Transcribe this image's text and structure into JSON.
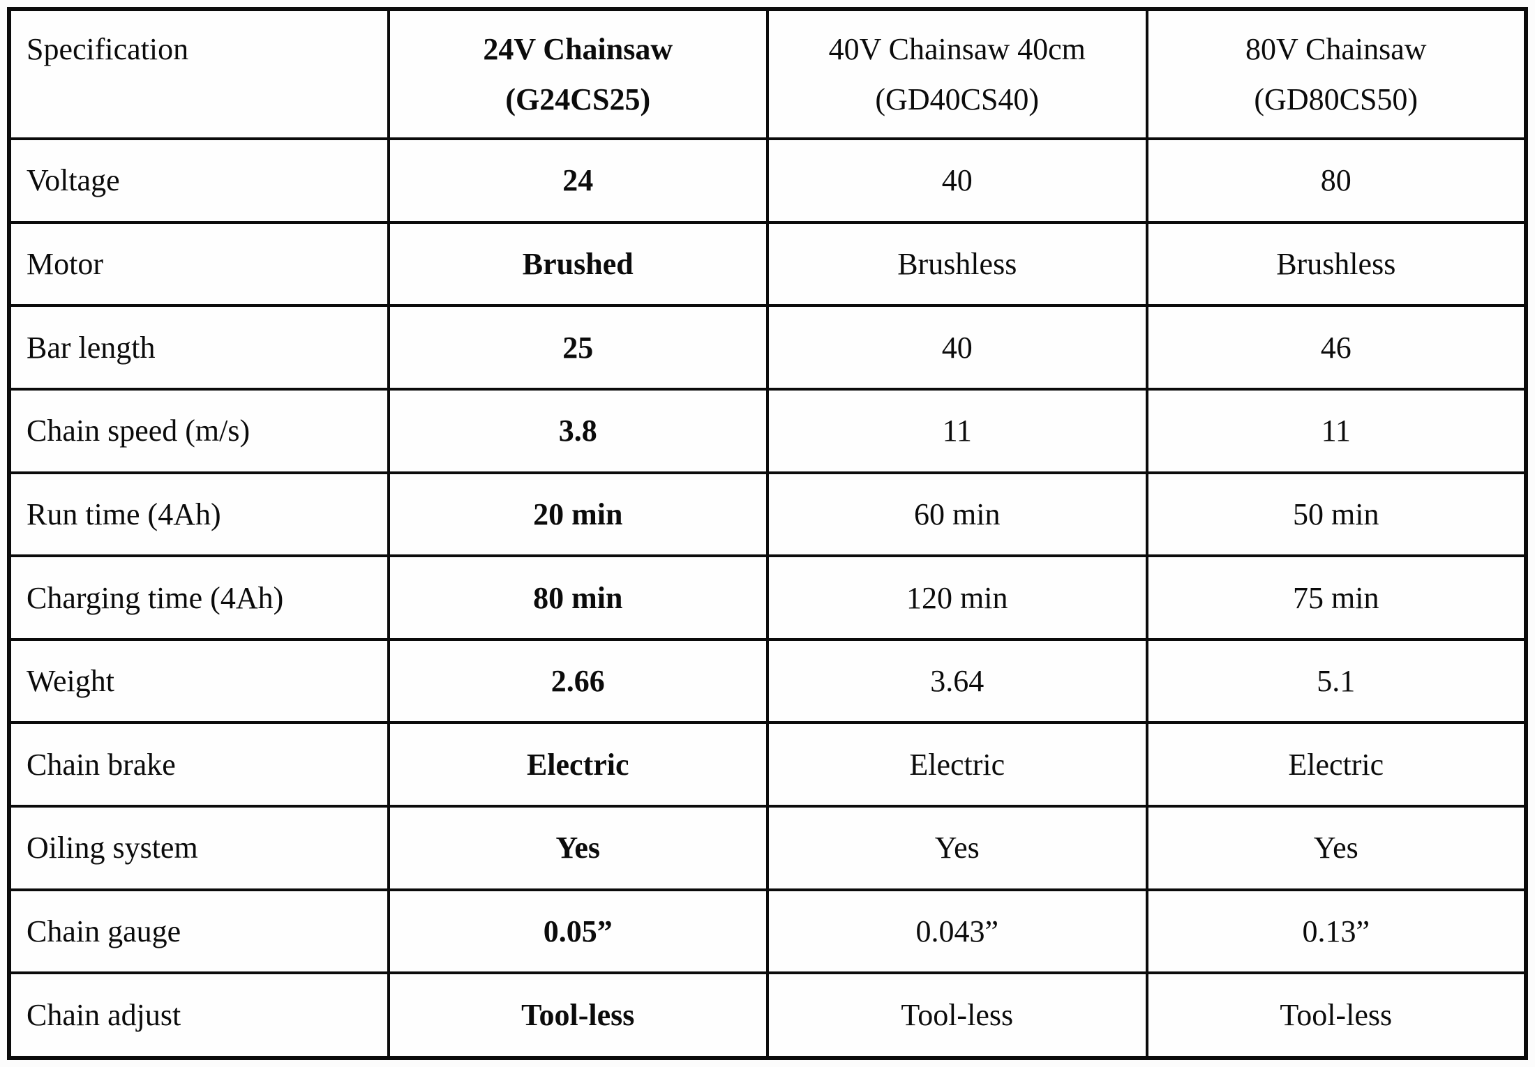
{
  "page": {
    "background": "#fcfcfc",
    "border_color": "#0b0b0b",
    "text_color": "#0b0b0b"
  },
  "table": {
    "header": [
      {
        "title": "Specification",
        "model": ""
      },
      {
        "title": "24V Chainsaw",
        "model": "(G24CS25)"
      },
      {
        "title": "40V Chainsaw 40cm",
        "model": "(GD40CS40)"
      },
      {
        "title": "80V Chainsaw",
        "model": "(GD80CS50)"
      }
    ],
    "rows": [
      {
        "label": "Voltage",
        "values": [
          "24",
          "40",
          "80"
        ]
      },
      {
        "label": "Motor",
        "values": [
          "Brushed",
          "Brushless",
          "Brushless"
        ]
      },
      {
        "label": "Bar length",
        "values": [
          "25",
          "40",
          "46"
        ]
      },
      {
        "label": "Chain speed (m/s)",
        "values": [
          "3.8",
          "11",
          "11"
        ]
      },
      {
        "label": "Run time (4Ah)",
        "values": [
          "20 min",
          "60 min",
          "50 min"
        ]
      },
      {
        "label": "Charging time (4Ah)",
        "values": [
          "80 min",
          "120 min",
          "75 min"
        ]
      },
      {
        "label": "Weight",
        "values": [
          "2.66",
          "3.64",
          "5.1"
        ]
      },
      {
        "label": "Chain brake",
        "values": [
          "Electric",
          "Electric",
          "Electric"
        ]
      },
      {
        "label": "Oiling system",
        "values": [
          "Yes",
          "Yes",
          "Yes"
        ]
      },
      {
        "label": "Chain gauge",
        "values": [
          "0.05”",
          "0.043”",
          "0.13”"
        ]
      },
      {
        "label": "Chain adjust",
        "values": [
          "Tool-less",
          "Tool-less",
          "Tool-less"
        ]
      }
    ]
  }
}
